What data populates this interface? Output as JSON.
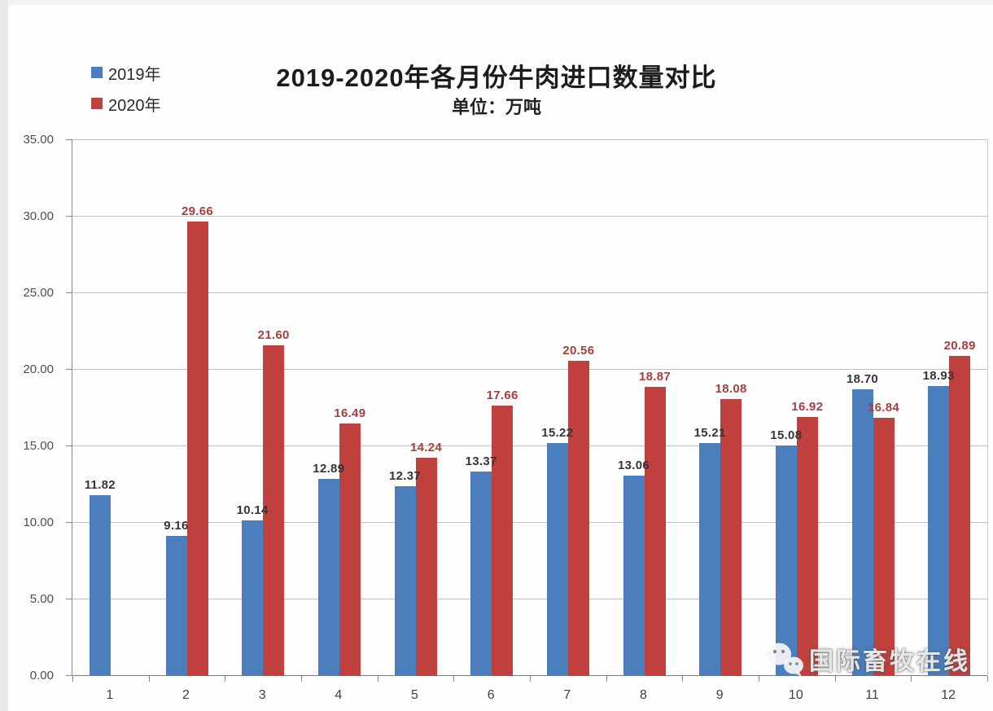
{
  "chart_data": {
    "type": "bar",
    "title": "2019-2020年各月份牛肉进口数量对比",
    "subtitle": "单位：万吨",
    "categories": [
      "1",
      "2",
      "3",
      "4",
      "5",
      "6",
      "7",
      "8",
      "9",
      "10",
      "11",
      "12"
    ],
    "series": [
      {
        "name": "2019年",
        "color": "#4a7ebc",
        "label_color": "#363636",
        "values": [
          11.82,
          9.16,
          10.14,
          12.89,
          12.37,
          13.37,
          15.22,
          13.06,
          15.21,
          15.08,
          18.7,
          18.93
        ]
      },
      {
        "name": "2020年",
        "color": "#bf403d",
        "label_color": "#a5403c",
        "values": [
          null,
          29.66,
          21.6,
          16.49,
          14.24,
          17.66,
          20.56,
          18.87,
          18.08,
          16.92,
          16.84,
          20.89
        ]
      }
    ],
    "xlabel": "",
    "ylabel": "",
    "ylim": [
      0,
      35
    ],
    "ytick_step": 5,
    "ytick_labels": [
      "0.00",
      "5.00",
      "10.00",
      "15.00",
      "20.00",
      "25.00",
      "30.00",
      "35.00"
    ],
    "grid": true,
    "value_labels": true,
    "legend_position": "top-left",
    "colors": {
      "gridline": "#bfbfbf",
      "axis": "#8a8a8a",
      "tick_label": "#4d4d4d"
    }
  },
  "watermark": {
    "icon": "wechat-icon",
    "text": "国际畜牧在线"
  }
}
